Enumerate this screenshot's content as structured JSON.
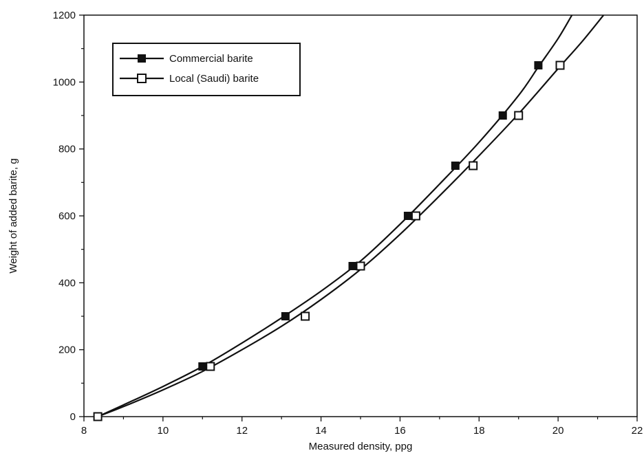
{
  "chart_data": {
    "type": "line",
    "title": "",
    "xlabel": "Measured density, ppg",
    "ylabel": "Weight of added barite, g",
    "xlim": [
      8,
      22
    ],
    "ylim": [
      0,
      1200
    ],
    "xticks": [
      "8",
      "10",
      "12",
      "14",
      "16",
      "18",
      "20",
      "22"
    ],
    "yticks": [
      "0",
      "200",
      "400",
      "600",
      "800",
      "1000",
      "1200"
    ],
    "grid": false,
    "legend_position": "top-left",
    "series": [
      {
        "name": "Commercial barite",
        "marker": "filled-square",
        "color": "#111111",
        "points": [
          {
            "x": 8.35,
            "y": 0
          },
          {
            "x": 11.0,
            "y": 150
          },
          {
            "x": 13.1,
            "y": 300
          },
          {
            "x": 14.8,
            "y": 450
          },
          {
            "x": 16.2,
            "y": 600
          },
          {
            "x": 17.4,
            "y": 750
          },
          {
            "x": 18.6,
            "y": 900
          },
          {
            "x": 19.5,
            "y": 1050
          }
        ],
        "curve": [
          {
            "x": 8.35,
            "y": 0
          },
          {
            "x": 9.0,
            "y": 35
          },
          {
            "x": 10.0,
            "y": 90
          },
          {
            "x": 11.0,
            "y": 150
          },
          {
            "x": 12.0,
            "y": 220
          },
          {
            "x": 13.0,
            "y": 295
          },
          {
            "x": 14.0,
            "y": 375
          },
          {
            "x": 15.0,
            "y": 465
          },
          {
            "x": 16.0,
            "y": 575
          },
          {
            "x": 17.0,
            "y": 695
          },
          {
            "x": 18.0,
            "y": 820
          },
          {
            "x": 19.0,
            "y": 960
          },
          {
            "x": 19.5,
            "y": 1045
          },
          {
            "x": 20.0,
            "y": 1130
          },
          {
            "x": 20.35,
            "y": 1200
          }
        ]
      },
      {
        "name": "Local (Saudi) barite",
        "marker": "open-square",
        "color": "#111111",
        "points": [
          {
            "x": 8.35,
            "y": 0
          },
          {
            "x": 11.2,
            "y": 150
          },
          {
            "x": 13.6,
            "y": 300
          },
          {
            "x": 15.0,
            "y": 450
          },
          {
            "x": 16.4,
            "y": 600
          },
          {
            "x": 17.85,
            "y": 750
          },
          {
            "x": 19.0,
            "y": 900
          },
          {
            "x": 20.05,
            "y": 1050
          }
        ],
        "curve": [
          {
            "x": 8.35,
            "y": 0
          },
          {
            "x": 9.0,
            "y": 30
          },
          {
            "x": 10.0,
            "y": 80
          },
          {
            "x": 11.0,
            "y": 135
          },
          {
            "x": 12.0,
            "y": 200
          },
          {
            "x": 13.0,
            "y": 270
          },
          {
            "x": 14.0,
            "y": 350
          },
          {
            "x": 15.0,
            "y": 440
          },
          {
            "x": 16.0,
            "y": 545
          },
          {
            "x": 17.0,
            "y": 660
          },
          {
            "x": 18.0,
            "y": 780
          },
          {
            "x": 19.0,
            "y": 905
          },
          {
            "x": 20.0,
            "y": 1040
          },
          {
            "x": 20.6,
            "y": 1120
          },
          {
            "x": 21.15,
            "y": 1200
          }
        ]
      }
    ]
  }
}
